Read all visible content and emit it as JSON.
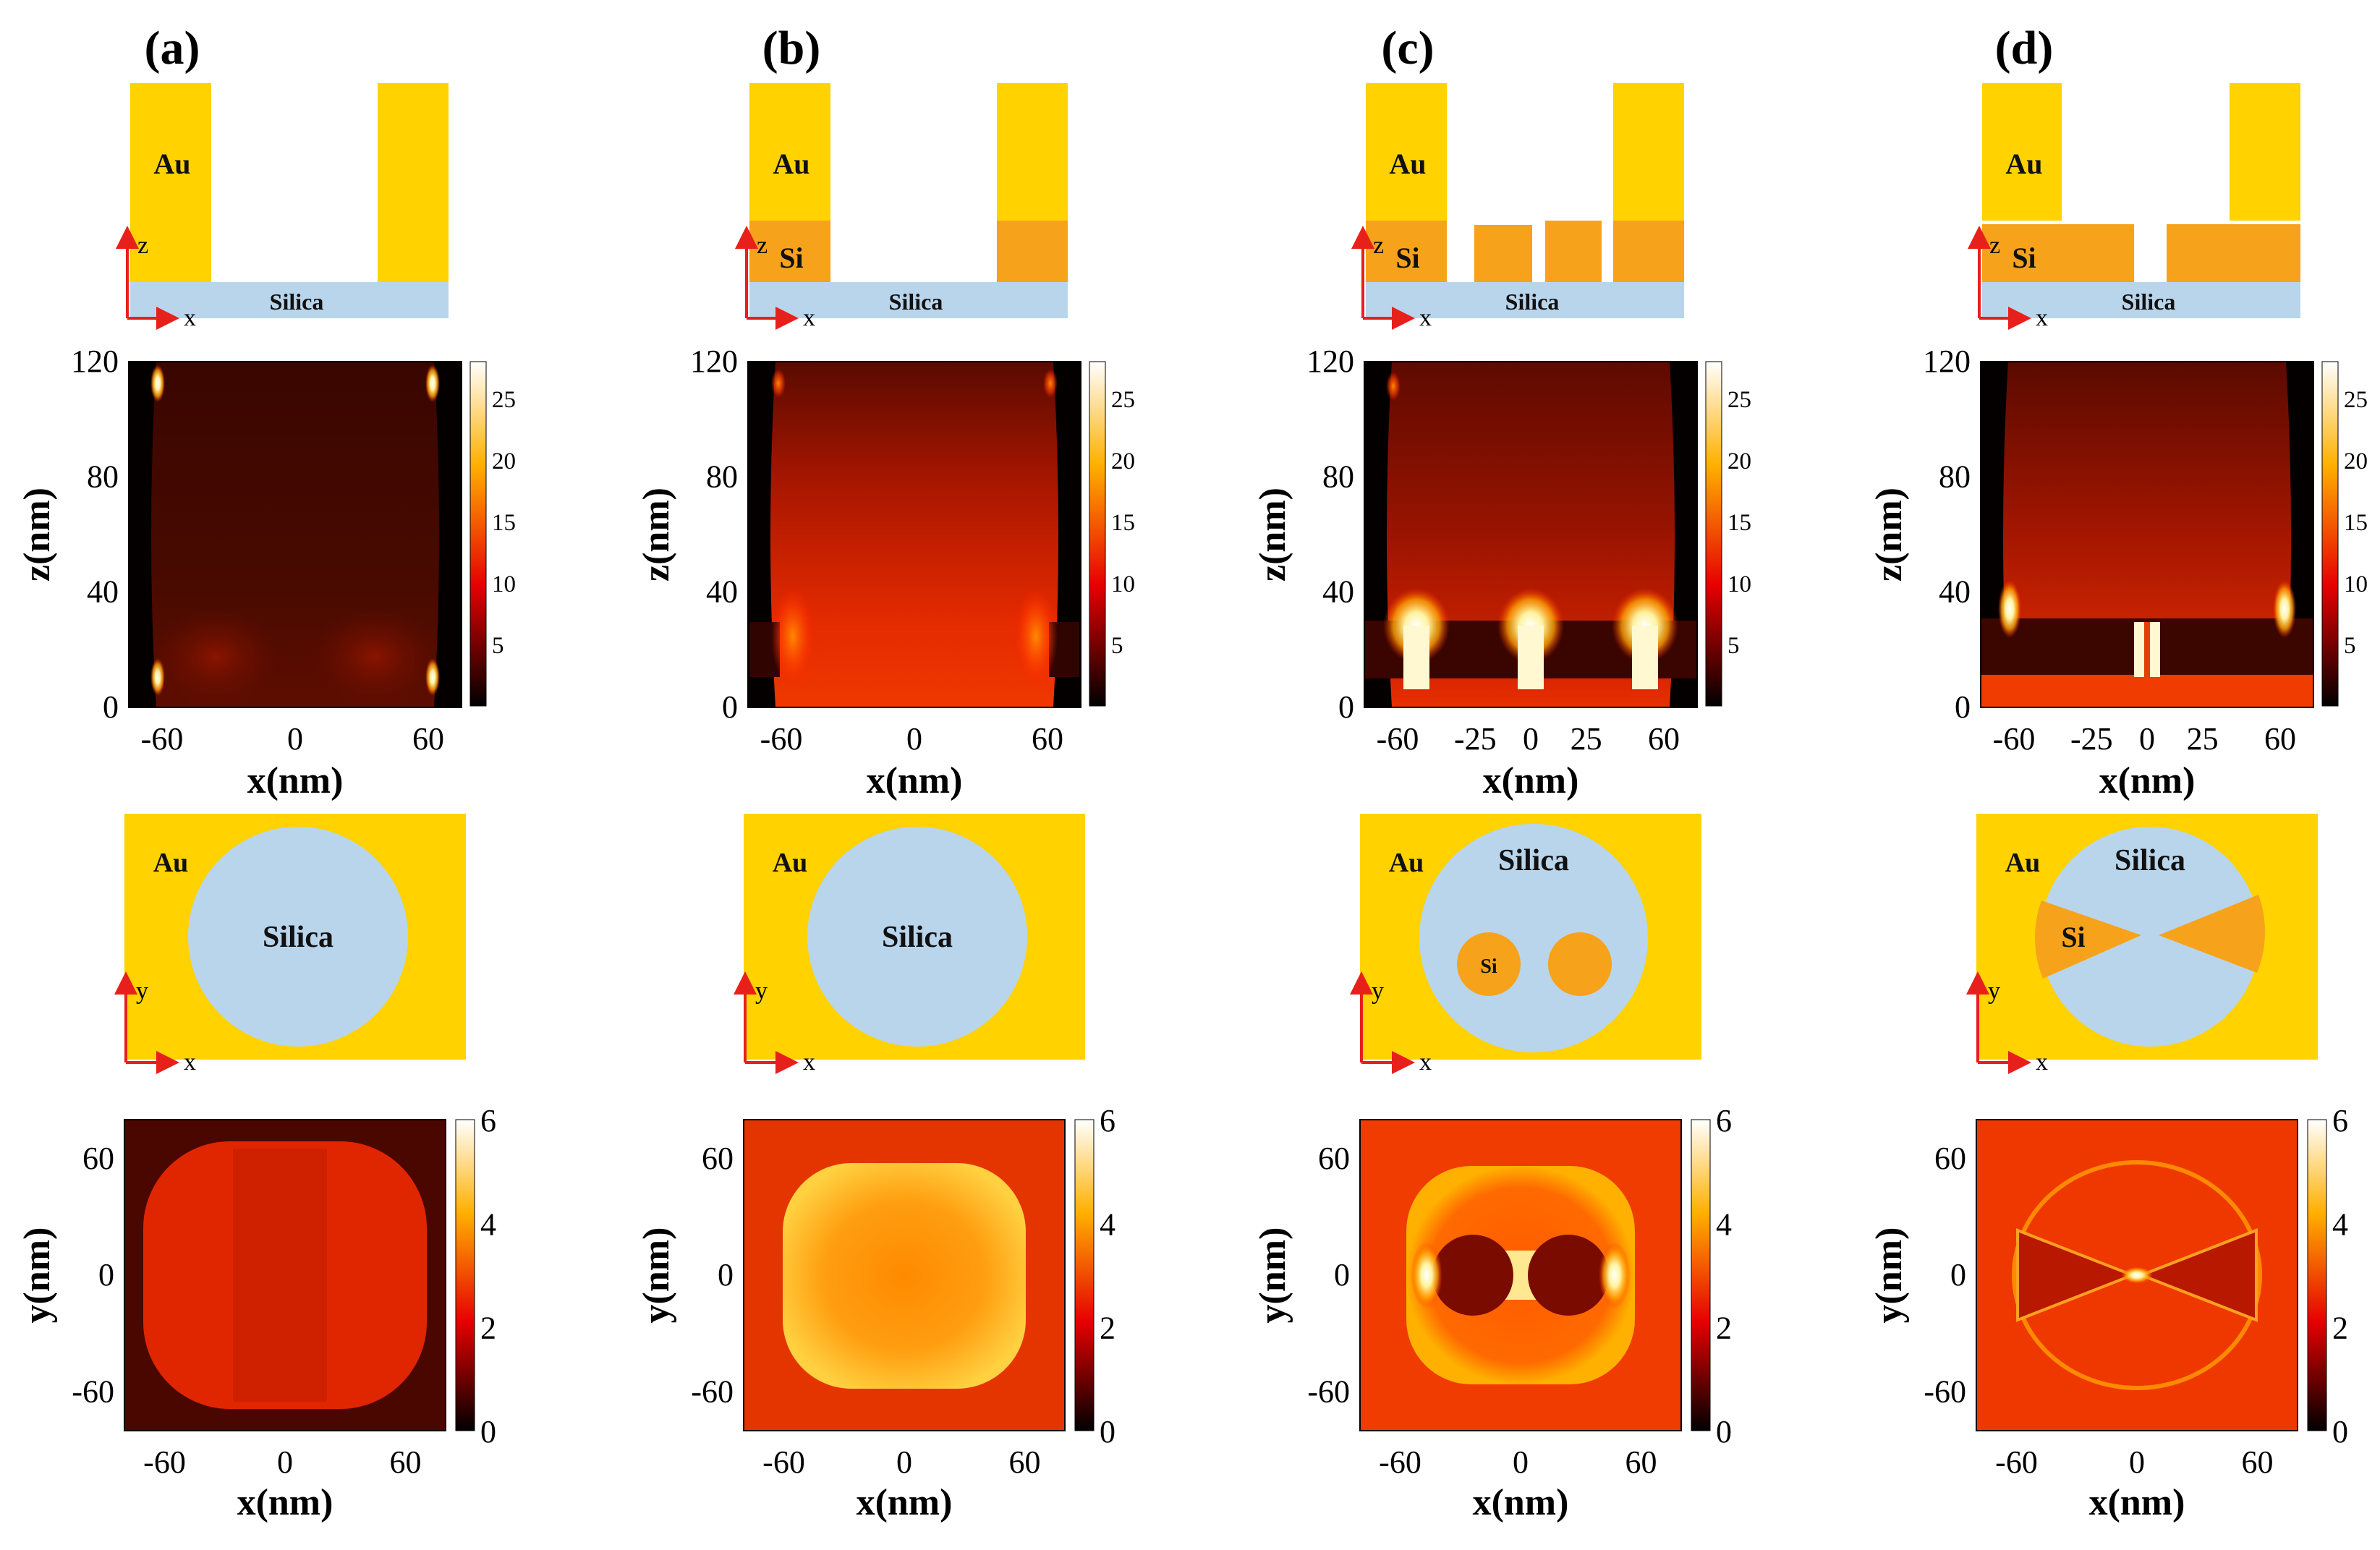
{
  "figure": {
    "colors": {
      "gold": "#FFD200",
      "gold_edge": "#F2C200",
      "silicon": "#F7A21B",
      "silica": "#B9D5EC",
      "axis_arrow": "#E8201C"
    },
    "panels": [
      {
        "label": "(a)",
        "xz_materials": {
          "au": "Au",
          "si": "",
          "silica": "Silica"
        },
        "xy_materials": {
          "au": "Au",
          "silica": "Silica",
          "si": ""
        },
        "xz_field": {
          "colorbar_ticks": [
            "25",
            "20",
            "15",
            "10",
            "5"
          ],
          "x_ticks": [
            "-60",
            "0",
            "60"
          ]
        },
        "xy_field": {
          "colorbar_ticks": [
            "6",
            "4",
            "2",
            "0"
          ],
          "x_ticks": [
            "-60",
            "0",
            "60"
          ]
        }
      },
      {
        "label": "(b)",
        "xz_materials": {
          "au": "Au",
          "si": "Si",
          "silica": "Silica"
        },
        "xy_materials": {
          "au": "Au",
          "silica": "Silica",
          "si": ""
        },
        "xz_field": {
          "colorbar_ticks": [
            "25",
            "20",
            "15",
            "10",
            "5"
          ],
          "x_ticks": [
            "-60",
            "0",
            "60"
          ]
        },
        "xy_field": {
          "colorbar_ticks": [
            "6",
            "4",
            "2",
            "0"
          ],
          "x_ticks": [
            "-60",
            "0",
            "60"
          ]
        }
      },
      {
        "label": "(c)",
        "xz_materials": {
          "au": "Au",
          "si": "Si",
          "silica": "Silica"
        },
        "xy_materials": {
          "au": "Au",
          "silica": "Silica",
          "si": "Si"
        },
        "xz_field": {
          "colorbar_ticks": [
            "25",
            "20",
            "15",
            "10",
            "5"
          ],
          "x_ticks": [
            "-60",
            "-25",
            "0",
            "25",
            "60"
          ]
        },
        "xy_field": {
          "colorbar_ticks": [
            "6",
            "4",
            "2",
            "0"
          ],
          "x_ticks": [
            "-60",
            "0",
            "60"
          ]
        }
      },
      {
        "label": "(d)",
        "xz_materials": {
          "au": "Au",
          "si": "Si",
          "silica": "Silica"
        },
        "xy_materials": {
          "au": "Au",
          "silica": "Silica",
          "si": "Si"
        },
        "xz_field": {
          "colorbar_ticks": [
            "25",
            "20",
            "15",
            "10",
            "5"
          ],
          "x_ticks": [
            "-60",
            "-25",
            "0",
            "25",
            "60"
          ]
        },
        "xy_field": {
          "colorbar_ticks": [
            "6",
            "4",
            "2",
            "0"
          ],
          "x_ticks": [
            "-60",
            "0",
            "60"
          ]
        }
      }
    ],
    "xz_axes": {
      "z_ticks": [
        "120",
        "80",
        "40",
        "0"
      ],
      "xlabel": "x(nm)",
      "ylabel": "z(nm)"
    },
    "xy_axes": {
      "y_ticks": [
        "60",
        "0",
        "-60"
      ],
      "xlabel": "x(nm)",
      "ylabel": "y(nm)"
    },
    "coord_labels": {
      "x": "x",
      "y": "y",
      "z": "z"
    }
  }
}
